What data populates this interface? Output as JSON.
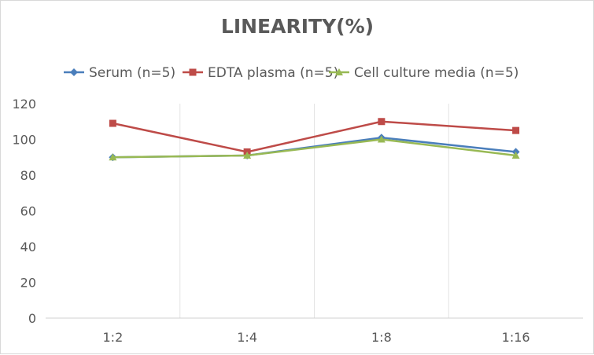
{
  "chart_data": {
    "type": "line",
    "title": "LINEARITY(%)",
    "categories": [
      "1:2",
      "1:4",
      "1:8",
      "1:16"
    ],
    "series": [
      {
        "name": "Serum (n=5)",
        "values": [
          90,
          91,
          101,
          93
        ],
        "color": "#4a7ebb",
        "marker": "diamond"
      },
      {
        "name": "EDTA plasma (n=5)",
        "values": [
          109,
          93,
          110,
          105
        ],
        "color": "#be4b48",
        "marker": "square"
      },
      {
        "name": "Cell culture media (n=5)",
        "values": [
          90,
          91,
          100,
          91
        ],
        "color": "#98b954",
        "marker": "triangle"
      }
    ],
    "ylim": [
      0,
      120
    ],
    "yticks": [
      0,
      20,
      40,
      60,
      80,
      100,
      120
    ],
    "legend": "top",
    "grid": "vertical category separators",
    "xlabel": "",
    "ylabel": ""
  }
}
